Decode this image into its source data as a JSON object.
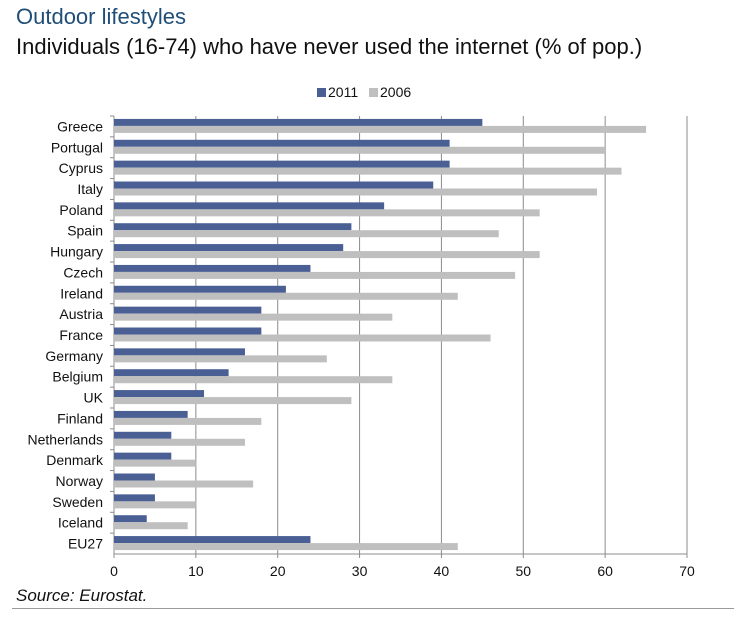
{
  "header": {
    "title": "Outdoor lifestyles",
    "subtitle": "Individuals (16-74) who have never used the internet (% of pop.)"
  },
  "footer": {
    "source": "Source: Eurostat."
  },
  "colors": {
    "series_2011": "#4a5f94",
    "series_2006": "#bfbfbf",
    "gridline": "#8c8c8c",
    "axis": "#8c8c8c",
    "title": "#1f4e79"
  },
  "chart_data": {
    "type": "bar",
    "orientation": "horizontal",
    "title": "Individuals (16-74) who have never used the internet (% of pop.)",
    "xlabel": "",
    "ylabel": "",
    "xlim": [
      0,
      70
    ],
    "xticks": [
      0,
      10,
      20,
      30,
      40,
      50,
      60,
      70
    ],
    "grid": true,
    "legend_position": "top-center",
    "categories": [
      "Greece",
      "Portugal",
      "Cyprus",
      "Italy",
      "Poland",
      "Spain",
      "Hungary",
      "Czech",
      "Ireland",
      "Austria",
      "France",
      "Germany",
      "Belgium",
      "UK",
      "Finland",
      "Netherlands",
      "Denmark",
      "Norway",
      "Sweden",
      "Iceland",
      "EU27"
    ],
    "series": [
      {
        "name": "2011",
        "values": [
          45,
          41,
          41,
          39,
          33,
          29,
          28,
          24,
          21,
          18,
          18,
          16,
          14,
          11,
          9,
          7,
          7,
          5,
          5,
          4,
          24
        ]
      },
      {
        "name": "2006",
        "values": [
          65,
          60,
          62,
          59,
          52,
          47,
          52,
          49,
          42,
          34,
          46,
          26,
          34,
          29,
          18,
          16,
          10,
          17,
          10,
          9,
          42
        ]
      }
    ]
  }
}
